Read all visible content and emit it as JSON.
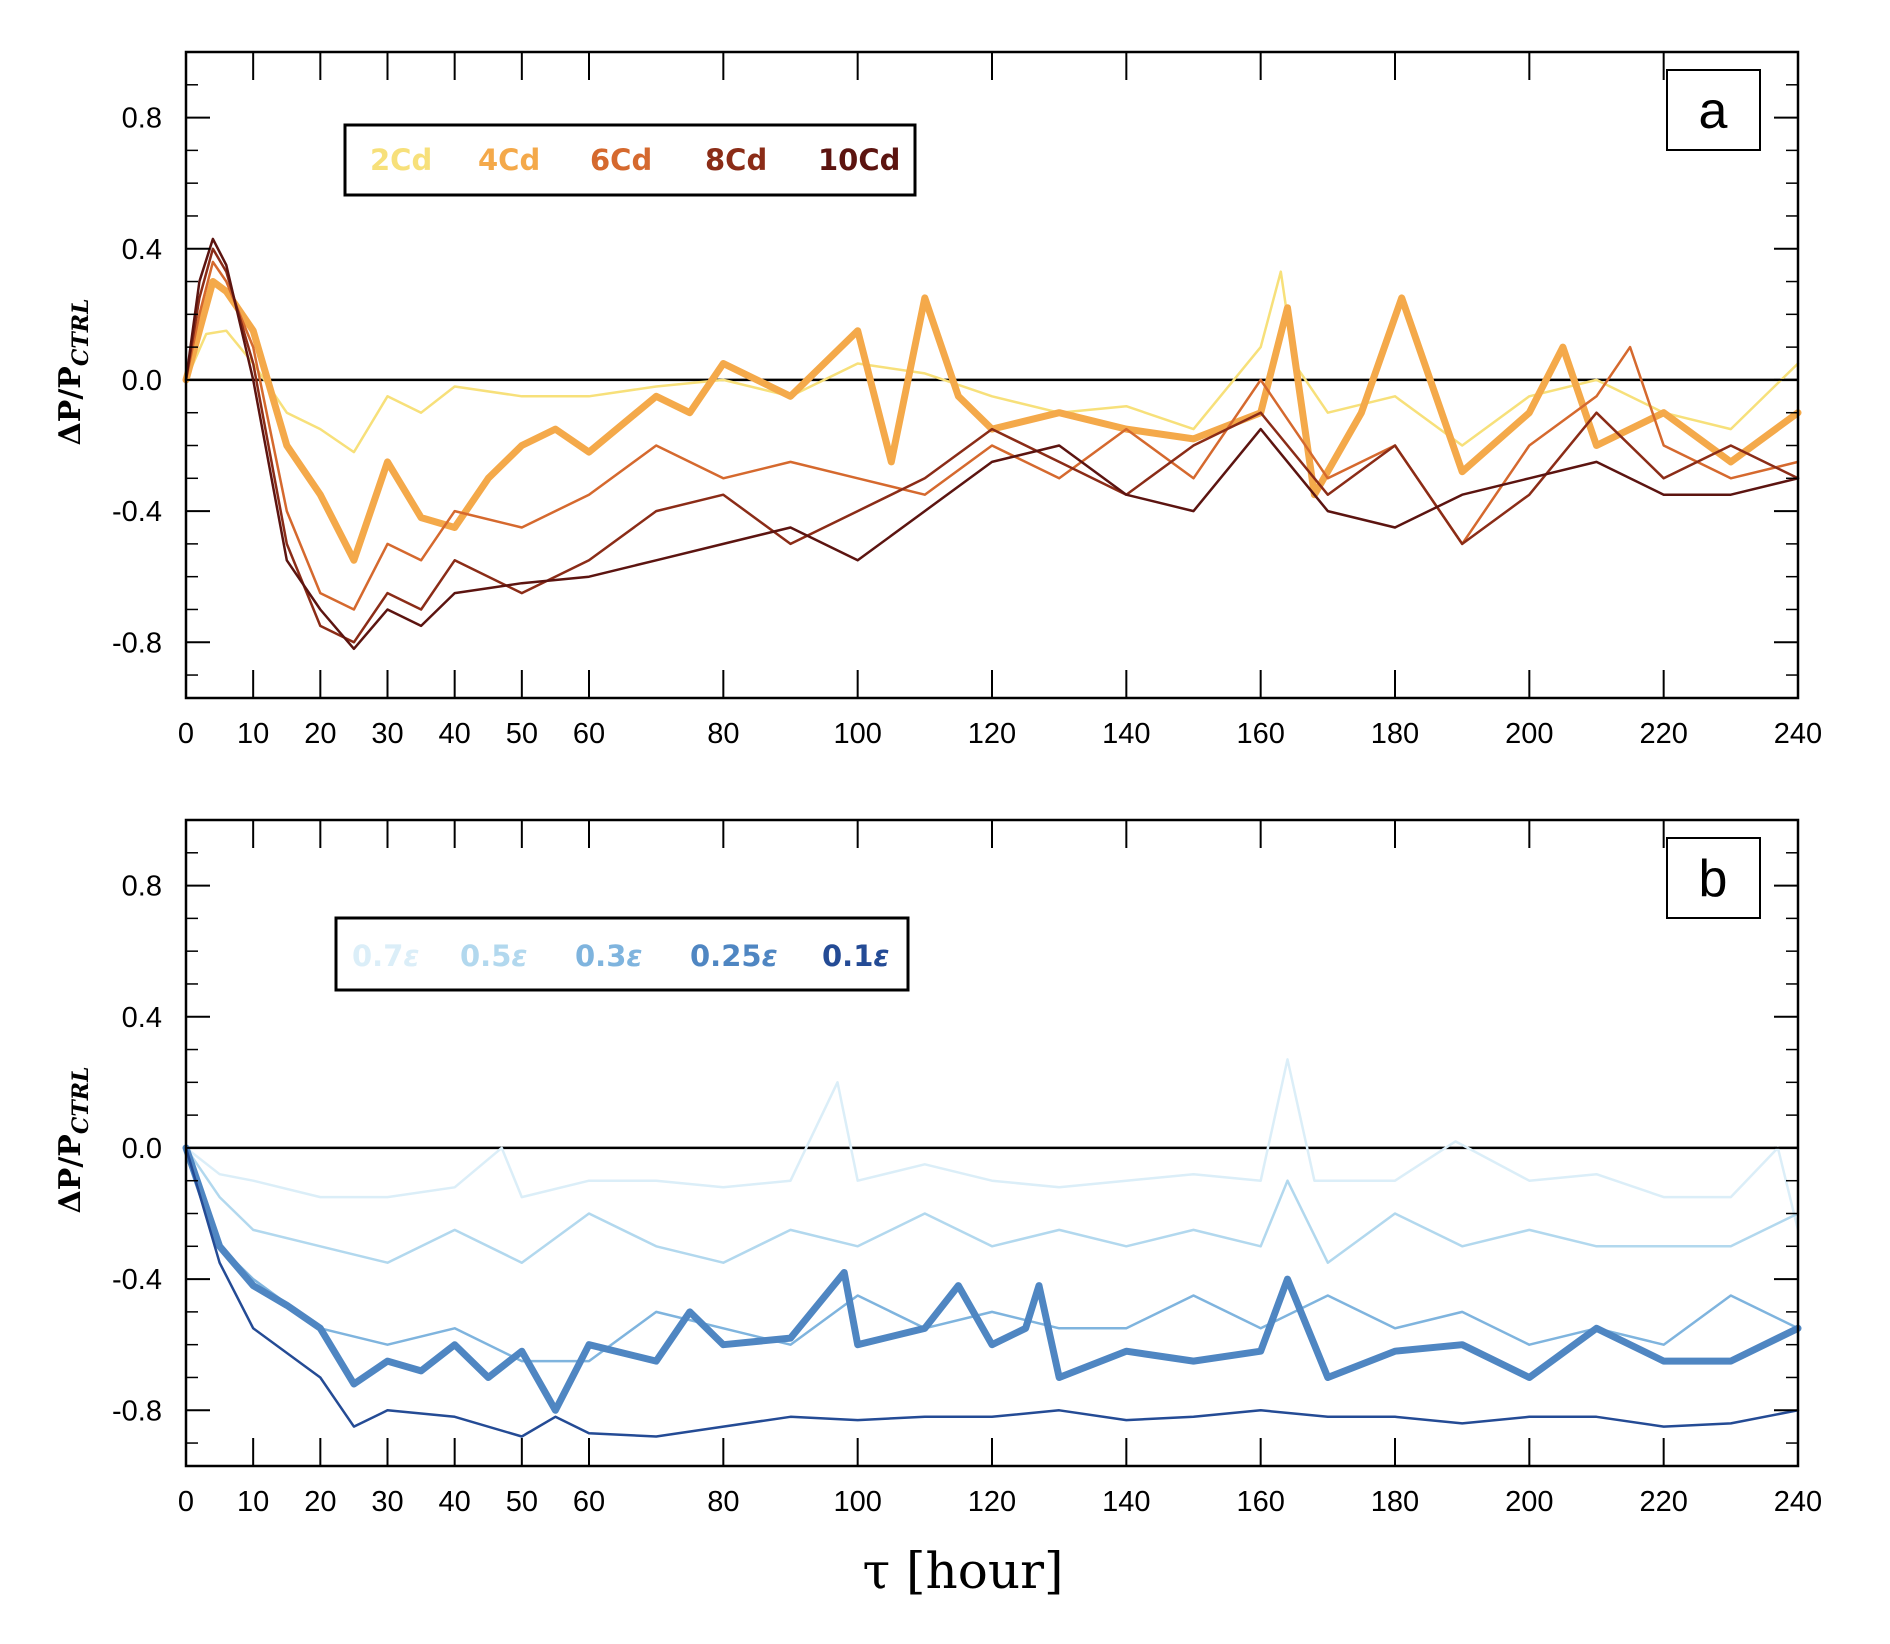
{
  "chart_data": [
    {
      "type": "line",
      "panel_label": "a",
      "title": "",
      "xlabel": "τ [hour]",
      "ylabel": "ΔP/P_CTRL",
      "ylabel_main": "ΔP/P",
      "ylabel_sub": "CTRL",
      "xlim": [
        0,
        240
      ],
      "ylim": [
        -0.97,
        1.0
      ],
      "xticks": [
        0,
        10,
        20,
        30,
        40,
        50,
        60,
        80,
        100,
        120,
        140,
        160,
        180,
        200,
        220,
        240
      ],
      "xtick_labels": [
        "0",
        "10",
        "20",
        "30",
        "40",
        "50",
        "60",
        "80",
        "100",
        "120",
        "140",
        "160",
        "180",
        "200",
        "220",
        "240"
      ],
      "yticks": [
        0.8,
        0.4,
        0.0,
        -0.4,
        -0.8
      ],
      "ytick_labels": [
        "0.8",
        "0.4",
        "0.0",
        "-0.4",
        "-0.8"
      ],
      "zero_line": true,
      "legend_position": "top-left",
      "series": [
        {
          "name": "2Cd",
          "color": "#f7e07a",
          "width": 2.5,
          "x": [
            0,
            3,
            6,
            10,
            15,
            20,
            25,
            30,
            35,
            40,
            50,
            60,
            70,
            80,
            90,
            100,
            110,
            120,
            130,
            140,
            150,
            160,
            163,
            165,
            170,
            180,
            190,
            200,
            210,
            220,
            230,
            240
          ],
          "y": [
            0.0,
            0.14,
            0.15,
            0.05,
            -0.1,
            -0.15,
            -0.22,
            -0.05,
            -0.1,
            -0.02,
            -0.05,
            -0.05,
            -0.02,
            0.0,
            -0.05,
            0.05,
            0.02,
            -0.05,
            -0.1,
            -0.08,
            -0.15,
            0.1,
            0.33,
            0.05,
            -0.1,
            -0.05,
            -0.2,
            -0.05,
            0.0,
            -0.1,
            -0.15,
            0.05
          ]
        },
        {
          "name": "4Cd",
          "color": "#f4a94a",
          "width": 7,
          "x": [
            0,
            2,
            4,
            6,
            10,
            15,
            20,
            25,
            30,
            35,
            40,
            45,
            50,
            55,
            60,
            70,
            75,
            80,
            90,
            100,
            105,
            110,
            115,
            120,
            130,
            140,
            150,
            160,
            164,
            168,
            175,
            181,
            190,
            200,
            205,
            210,
            220,
            230,
            240
          ],
          "y": [
            0.0,
            0.15,
            0.3,
            0.27,
            0.15,
            -0.2,
            -0.35,
            -0.55,
            -0.25,
            -0.42,
            -0.45,
            -0.3,
            -0.2,
            -0.15,
            -0.22,
            -0.05,
            -0.1,
            0.05,
            -0.05,
            0.15,
            -0.25,
            0.25,
            -0.05,
            -0.15,
            -0.1,
            -0.15,
            -0.18,
            -0.1,
            0.22,
            -0.35,
            -0.1,
            0.25,
            -0.28,
            -0.1,
            0.1,
            -0.2,
            -0.1,
            -0.25,
            -0.1
          ]
        },
        {
          "name": "6Cd",
          "color": "#d5692e",
          "width": 2.5,
          "x": [
            0,
            2,
            4,
            6,
            10,
            15,
            20,
            25,
            30,
            35,
            40,
            50,
            60,
            70,
            80,
            90,
            100,
            110,
            120,
            130,
            140,
            150,
            160,
            170,
            180,
            190,
            200,
            210,
            215,
            220,
            230,
            240
          ],
          "y": [
            0.0,
            0.2,
            0.36,
            0.3,
            0.1,
            -0.4,
            -0.65,
            -0.7,
            -0.5,
            -0.55,
            -0.4,
            -0.45,
            -0.35,
            -0.2,
            -0.3,
            -0.25,
            -0.3,
            -0.35,
            -0.2,
            -0.3,
            -0.15,
            -0.3,
            0.0,
            -0.3,
            -0.2,
            -0.5,
            -0.2,
            -0.05,
            0.1,
            -0.2,
            -0.3,
            -0.25
          ]
        },
        {
          "name": "8Cd",
          "color": "#8b2c17",
          "width": 2.5,
          "x": [
            0,
            2,
            4,
            6,
            10,
            15,
            20,
            25,
            30,
            35,
            40,
            50,
            60,
            70,
            80,
            90,
            100,
            110,
            120,
            130,
            140,
            150,
            160,
            170,
            180,
            190,
            200,
            210,
            220,
            230,
            240
          ],
          "y": [
            0.0,
            0.25,
            0.4,
            0.33,
            0.05,
            -0.5,
            -0.75,
            -0.8,
            -0.65,
            -0.7,
            -0.55,
            -0.65,
            -0.55,
            -0.4,
            -0.35,
            -0.5,
            -0.4,
            -0.3,
            -0.15,
            -0.25,
            -0.35,
            -0.2,
            -0.1,
            -0.35,
            -0.2,
            -0.5,
            -0.35,
            -0.1,
            -0.3,
            -0.2,
            -0.3
          ]
        },
        {
          "name": "10Cd",
          "color": "#5c1410",
          "width": 2.5,
          "x": [
            0,
            2,
            4,
            6,
            10,
            15,
            20,
            25,
            30,
            35,
            40,
            50,
            60,
            70,
            80,
            90,
            100,
            110,
            120,
            130,
            140,
            150,
            160,
            170,
            180,
            190,
            200,
            210,
            220,
            230,
            240
          ],
          "y": [
            0.0,
            0.3,
            0.43,
            0.35,
            0.0,
            -0.55,
            -0.7,
            -0.82,
            -0.7,
            -0.75,
            -0.65,
            -0.62,
            -0.6,
            -0.55,
            -0.5,
            -0.45,
            -0.55,
            -0.4,
            -0.25,
            -0.2,
            -0.35,
            -0.4,
            -0.15,
            -0.4,
            -0.45,
            -0.35,
            -0.3,
            -0.25,
            -0.35,
            -0.35,
            -0.3
          ]
        }
      ]
    },
    {
      "type": "line",
      "panel_label": "b",
      "title": "",
      "xlabel": "τ [hour]",
      "ylabel": "ΔP/P_CTRL",
      "ylabel_main": "ΔP/P",
      "ylabel_sub": "CTRL",
      "xlim": [
        0,
        240
      ],
      "ylim": [
        -0.97,
        1.0
      ],
      "xticks": [
        0,
        10,
        20,
        30,
        40,
        50,
        60,
        80,
        100,
        120,
        140,
        160,
        180,
        200,
        220,
        240
      ],
      "xtick_labels": [
        "0",
        "10",
        "20",
        "30",
        "40",
        "50",
        "60",
        "80",
        "100",
        "120",
        "140",
        "160",
        "180",
        "200",
        "220",
        "240"
      ],
      "yticks": [
        0.8,
        0.4,
        0.0,
        -0.4,
        -0.8
      ],
      "ytick_labels": [
        "0.8",
        "0.4",
        "0.0",
        "-0.4",
        "-0.8"
      ],
      "zero_line": true,
      "legend_position": "top-left",
      "legend_label_main": [
        "0.7",
        "0.5",
        "0.3",
        "0.25",
        "0.1"
      ],
      "legend_label_symbol": "ε",
      "series": [
        {
          "name": "0.7ε",
          "color": "#dbeef8",
          "width": 2.5,
          "x": [
            0,
            5,
            10,
            20,
            30,
            40,
            47,
            50,
            60,
            70,
            80,
            90,
            97,
            100,
            110,
            120,
            130,
            140,
            150,
            160,
            164,
            168,
            180,
            189,
            200,
            210,
            220,
            230,
            237,
            240
          ],
          "y": [
            0.0,
            -0.08,
            -0.1,
            -0.15,
            -0.15,
            -0.12,
            0.0,
            -0.15,
            -0.1,
            -0.1,
            -0.12,
            -0.1,
            0.2,
            -0.1,
            -0.05,
            -0.1,
            -0.12,
            -0.1,
            -0.08,
            -0.1,
            0.27,
            -0.1,
            -0.1,
            0.02,
            -0.1,
            -0.08,
            -0.15,
            -0.15,
            0.0,
            -0.25
          ]
        },
        {
          "name": "0.5ε",
          "color": "#b2d8ee",
          "width": 2.5,
          "x": [
            0,
            5,
            10,
            20,
            30,
            40,
            50,
            60,
            70,
            80,
            90,
            100,
            110,
            120,
            130,
            140,
            150,
            160,
            164,
            170,
            180,
            190,
            200,
            210,
            220,
            230,
            240
          ],
          "y": [
            0.0,
            -0.15,
            -0.25,
            -0.3,
            -0.35,
            -0.25,
            -0.35,
            -0.2,
            -0.3,
            -0.35,
            -0.25,
            -0.3,
            -0.2,
            -0.3,
            -0.25,
            -0.3,
            -0.25,
            -0.3,
            -0.1,
            -0.35,
            -0.2,
            -0.3,
            -0.25,
            -0.3,
            -0.3,
            -0.3,
            -0.2
          ]
        },
        {
          "name": "0.3ε",
          "color": "#7fb4de",
          "width": 2.5,
          "x": [
            0,
            5,
            10,
            20,
            30,
            40,
            50,
            60,
            70,
            80,
            90,
            100,
            110,
            120,
            130,
            140,
            150,
            160,
            170,
            180,
            190,
            200,
            210,
            220,
            230,
            240
          ],
          "y": [
            0.0,
            -0.3,
            -0.4,
            -0.55,
            -0.6,
            -0.55,
            -0.65,
            -0.65,
            -0.5,
            -0.55,
            -0.6,
            -0.45,
            -0.55,
            -0.5,
            -0.55,
            -0.55,
            -0.45,
            -0.55,
            -0.45,
            -0.55,
            -0.5,
            -0.6,
            -0.55,
            -0.6,
            -0.45,
            -0.55
          ]
        },
        {
          "name": "0.25ε",
          "color": "#4f86c2",
          "width": 7,
          "x": [
            0,
            5,
            10,
            15,
            20,
            25,
            30,
            35,
            40,
            45,
            50,
            55,
            60,
            70,
            75,
            80,
            90,
            98,
            100,
            110,
            115,
            120,
            125,
            127,
            130,
            140,
            150,
            160,
            164,
            170,
            180,
            190,
            200,
            210,
            220,
            230,
            240
          ],
          "y": [
            0.0,
            -0.3,
            -0.42,
            -0.48,
            -0.55,
            -0.72,
            -0.65,
            -0.68,
            -0.6,
            -0.7,
            -0.62,
            -0.8,
            -0.6,
            -0.65,
            -0.5,
            -0.6,
            -0.58,
            -0.38,
            -0.6,
            -0.55,
            -0.42,
            -0.6,
            -0.55,
            -0.42,
            -0.7,
            -0.62,
            -0.65,
            -0.62,
            -0.4,
            -0.7,
            -0.62,
            -0.6,
            -0.7,
            -0.55,
            -0.65,
            -0.65,
            -0.55
          ]
        },
        {
          "name": "0.1ε",
          "color": "#244b95",
          "width": 2.5,
          "x": [
            0,
            5,
            10,
            20,
            25,
            30,
            40,
            50,
            55,
            60,
            70,
            80,
            90,
            100,
            110,
            120,
            130,
            140,
            150,
            160,
            170,
            180,
            190,
            200,
            210,
            220,
            230,
            240
          ],
          "y": [
            0.0,
            -0.35,
            -0.55,
            -0.7,
            -0.85,
            -0.8,
            -0.82,
            -0.88,
            -0.82,
            -0.87,
            -0.88,
            -0.85,
            -0.82,
            -0.83,
            -0.82,
            -0.82,
            -0.8,
            -0.83,
            -0.82,
            -0.8,
            -0.82,
            -0.82,
            -0.84,
            -0.82,
            -0.82,
            -0.85,
            -0.84,
            -0.8
          ]
        }
      ]
    }
  ]
}
